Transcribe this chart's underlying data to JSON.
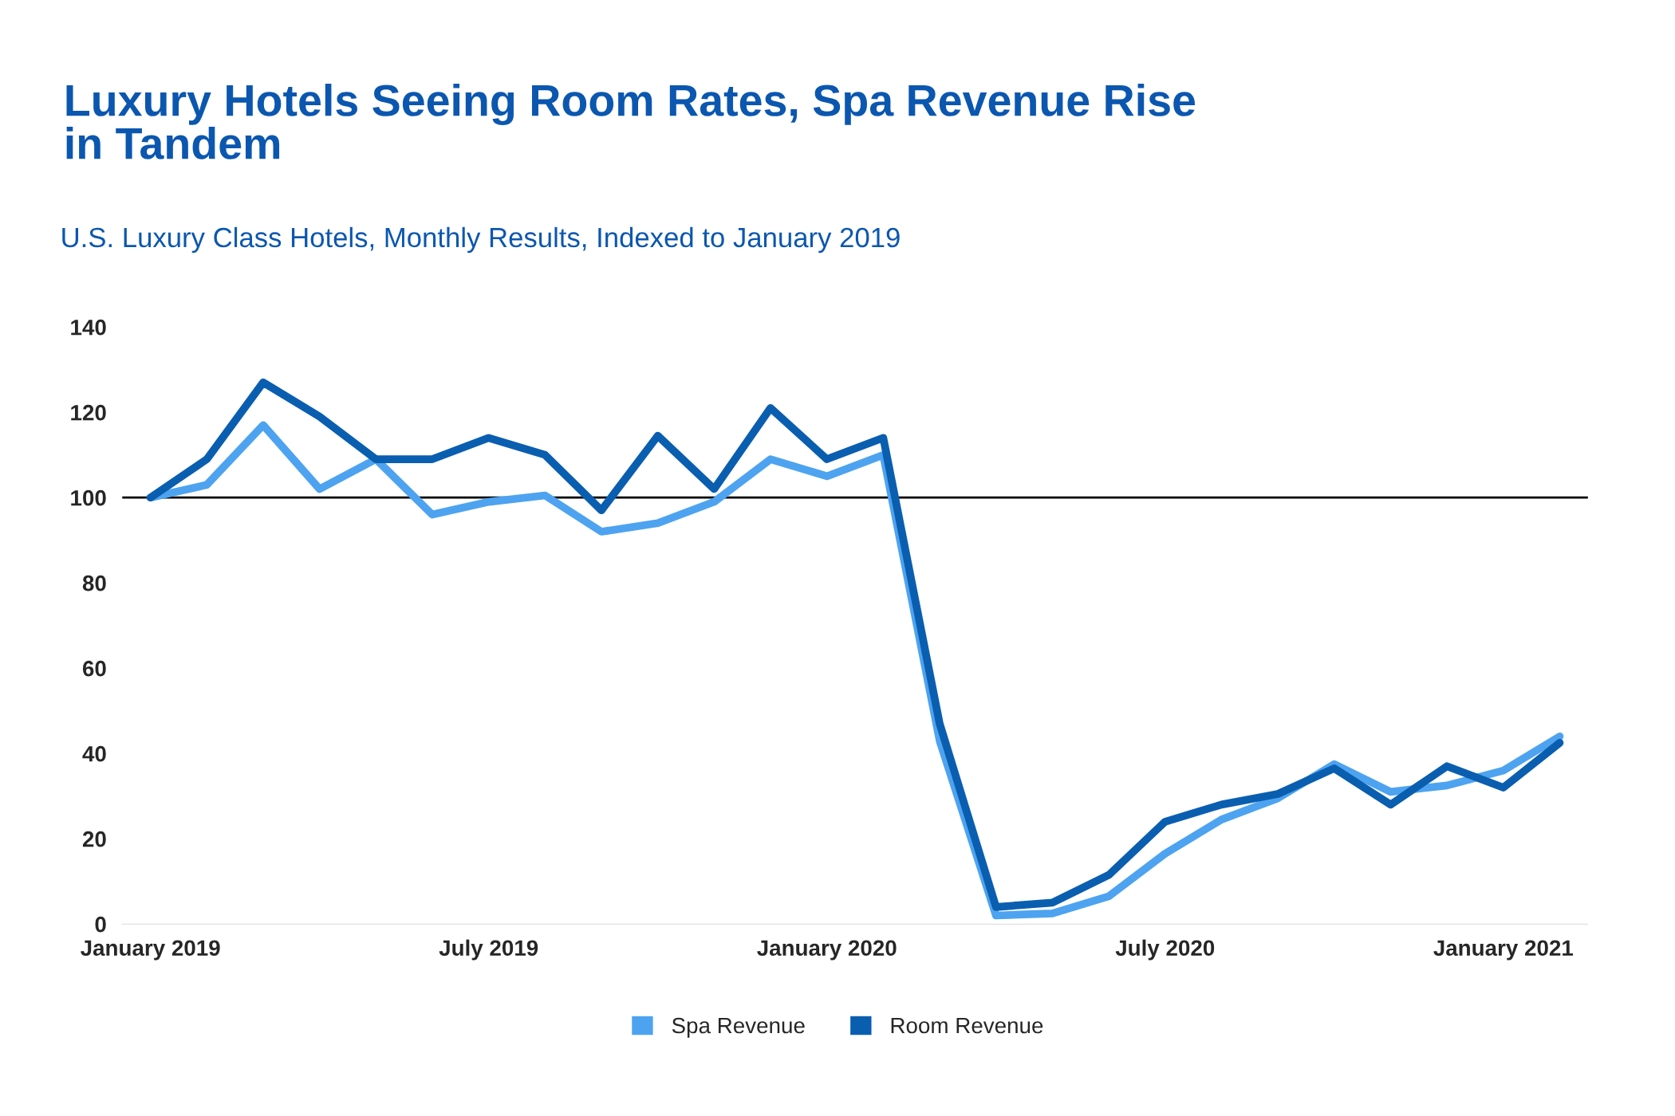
{
  "chart_data": {
    "type": "line",
    "title": "Luxury Hotels Seeing Room Rates, Spa Revenue Rise\nin Tandem",
    "subtitle": "U.S. Luxury Class Hotels, Monthly Results, Indexed to January 2019",
    "categories": [
      "January 2019",
      null,
      null,
      null,
      null,
      null,
      "July 2019",
      null,
      null,
      null,
      null,
      null,
      "January 2020",
      null,
      null,
      null,
      null,
      null,
      "July 2020",
      null,
      null,
      null,
      null,
      null,
      "January 2021",
      null
    ],
    "series": [
      {
        "name": "Spa Revenue",
        "color": "#4da3f0",
        "values": [
          100,
          103,
          117,
          102,
          109,
          96,
          99,
          100.5,
          92,
          94,
          99,
          109,
          105,
          110,
          43,
          2,
          2.5,
          6.5,
          16.5,
          24.5,
          29.5,
          37.5,
          31,
          32.5,
          36,
          44
        ]
      },
      {
        "name": "Room Revenue",
        "color": "#0a5eb0",
        "values": [
          100,
          109,
          127,
          119,
          109,
          109,
          114,
          110,
          97,
          114.5,
          102,
          121,
          109,
          114,
          47,
          4,
          5,
          11.5,
          24,
          28,
          30.5,
          36.5,
          28,
          37,
          32,
          42.5
        ]
      }
    ],
    "ylim": [
      0,
      140
    ],
    "yticks": [
      0,
      20,
      40,
      60,
      80,
      100,
      120,
      140
    ],
    "ref_lines": [
      {
        "axis": "y",
        "value": 100,
        "color": "#000000"
      }
    ],
    "grid": false,
    "legend": "bottom",
    "marker": "none",
    "line_style": "solid"
  }
}
